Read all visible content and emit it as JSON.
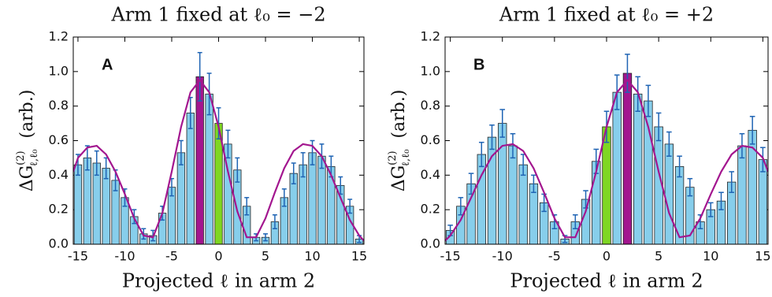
{
  "chart_data": [
    {
      "type": "bar",
      "title": "Arm 1 fixed at ℓ₀ = −2",
      "panel_label": "A",
      "xlabel": "Projected ℓ in arm 2",
      "ylabel": {
        "symbol": "ΔG",
        "sup": "(2)",
        "sub": "ℓ,ℓ₀",
        "unit": "(arb.)"
      },
      "categories": [
        -15,
        -14,
        -13,
        -12,
        -11,
        -10,
        -9,
        -8,
        -7,
        -6,
        -5,
        -4,
        -3,
        -2,
        -1,
        0,
        1,
        2,
        3,
        4,
        5,
        6,
        7,
        8,
        9,
        10,
        11,
        12,
        13,
        14,
        15
      ],
      "values": [
        0.46,
        0.5,
        0.47,
        0.44,
        0.37,
        0.27,
        0.16,
        0.06,
        0.05,
        0.18,
        0.33,
        0.53,
        0.76,
        0.97,
        0.87,
        0.7,
        0.58,
        0.43,
        0.22,
        0.04,
        0.04,
        0.13,
        0.27,
        0.41,
        0.46,
        0.53,
        0.51,
        0.45,
        0.34,
        0.22,
        0.03
      ],
      "errors": [
        0.06,
        0.07,
        0.07,
        0.06,
        0.06,
        0.05,
        0.04,
        0.03,
        0.03,
        0.04,
        0.05,
        0.07,
        0.09,
        0.14,
        0.12,
        0.09,
        0.08,
        0.07,
        0.05,
        0.02,
        0.02,
        0.04,
        0.05,
        0.06,
        0.07,
        0.07,
        0.07,
        0.06,
        0.05,
        0.04,
        0.02
      ],
      "bar_colors": [
        "#87ceeb",
        "#87ceeb",
        "#87ceeb",
        "#87ceeb",
        "#87ceeb",
        "#87ceeb",
        "#87ceeb",
        "#87ceeb",
        "#87ceeb",
        "#87ceeb",
        "#87ceeb",
        "#87ceeb",
        "#87ceeb",
        "#a3168f",
        "#87ceeb",
        "#7fd623",
        "#87ceeb",
        "#87ceeb",
        "#87ceeb",
        "#87ceeb",
        "#87ceeb",
        "#87ceeb",
        "#87ceeb",
        "#87ceeb",
        "#87ceeb",
        "#87ceeb",
        "#87ceeb",
        "#87ceeb",
        "#87ceeb",
        "#87ceeb",
        "#87ceeb"
      ],
      "error_color": "#1f64b4",
      "fit": {
        "color": "#a3168f",
        "x": [
          -15.5,
          -15,
          -14,
          -13,
          -12,
          -11,
          -10,
          -9,
          -8,
          -7,
          -6,
          -5,
          -4,
          -3,
          -2,
          -1,
          0,
          1,
          2,
          3,
          4,
          5,
          6,
          7,
          8,
          9,
          10,
          11,
          12,
          13,
          14,
          15,
          15.5
        ],
        "values": [
          0.42,
          0.5,
          0.56,
          0.57,
          0.52,
          0.42,
          0.29,
          0.15,
          0.05,
          0.04,
          0.18,
          0.42,
          0.68,
          0.88,
          0.95,
          0.88,
          0.68,
          0.42,
          0.19,
          0.04,
          0.04,
          0.15,
          0.3,
          0.44,
          0.54,
          0.58,
          0.57,
          0.51,
          0.4,
          0.27,
          0.14,
          0.05,
          0.02
        ]
      },
      "xlim": [
        -15.5,
        15.5
      ],
      "xticks": [
        -15,
        -10,
        -5,
        0,
        5,
        10,
        15
      ],
      "ylim": [
        0,
        1.2
      ],
      "yticks": [
        {
          "value": 0,
          "label": "0.0"
        },
        {
          "value": 0.2,
          "label": "0.2"
        },
        {
          "value": 0.4,
          "label": "0.4"
        },
        {
          "value": 0.6,
          "label": "0.6"
        },
        {
          "value": 0.8,
          "label": "0.8"
        },
        {
          "value": 1,
          "label": "1.0"
        },
        {
          "value": 1.2,
          "label": "1.2"
        }
      ]
    },
    {
      "type": "bar",
      "title": "Arm 1 fixed at ℓ₀ = +2",
      "panel_label": "B",
      "xlabel": "Projected ℓ in arm 2",
      "ylabel": {
        "symbol": "ΔG",
        "sup": "(2)",
        "sub": "ℓ,ℓ₀",
        "unit": "(arb.)"
      },
      "categories": [
        -15,
        -14,
        -13,
        -12,
        -11,
        -10,
        -9,
        -8,
        -7,
        -6,
        -5,
        -4,
        -3,
        -2,
        -1,
        0,
        1,
        2,
        3,
        4,
        5,
        6,
        7,
        8,
        9,
        10,
        11,
        12,
        13,
        14,
        15
      ],
      "values": [
        0.08,
        0.22,
        0.35,
        0.52,
        0.62,
        0.7,
        0.57,
        0.46,
        0.35,
        0.24,
        0.13,
        0.03,
        0.13,
        0.26,
        0.48,
        0.68,
        0.88,
        0.99,
        0.87,
        0.83,
        0.68,
        0.58,
        0.45,
        0.33,
        0.13,
        0.2,
        0.25,
        0.36,
        0.57,
        0.66,
        0.49
      ],
      "errors": [
        0.03,
        0.05,
        0.06,
        0.07,
        0.07,
        0.08,
        0.07,
        0.06,
        0.05,
        0.05,
        0.04,
        0.02,
        0.04,
        0.05,
        0.07,
        0.09,
        0.1,
        0.11,
        0.1,
        0.09,
        0.08,
        0.07,
        0.06,
        0.05,
        0.04,
        0.04,
        0.05,
        0.06,
        0.07,
        0.08,
        0.07
      ],
      "bar_colors": [
        "#87ceeb",
        "#87ceeb",
        "#87ceeb",
        "#87ceeb",
        "#87ceeb",
        "#87ceeb",
        "#87ceeb",
        "#87ceeb",
        "#87ceeb",
        "#87ceeb",
        "#87ceeb",
        "#87ceeb",
        "#87ceeb",
        "#87ceeb",
        "#87ceeb",
        "#7fd623",
        "#87ceeb",
        "#a3168f",
        "#87ceeb",
        "#87ceeb",
        "#87ceeb",
        "#87ceeb",
        "#87ceeb",
        "#87ceeb",
        "#87ceeb",
        "#87ceeb",
        "#87ceeb",
        "#87ceeb",
        "#87ceeb",
        "#87ceeb",
        "#87ceeb"
      ],
      "error_color": "#1f64b4",
      "fit": {
        "color": "#a3168f",
        "x": [
          -15.5,
          -15,
          -14,
          -13,
          -12,
          -11,
          -10,
          -9,
          -8,
          -7,
          -6,
          -5,
          -4,
          -3,
          -2,
          -1,
          0,
          1,
          2,
          3,
          4,
          5,
          6,
          7,
          8,
          9,
          10,
          11,
          12,
          13,
          14,
          15,
          15.5
        ],
        "values": [
          0.02,
          0.05,
          0.14,
          0.27,
          0.4,
          0.51,
          0.57,
          0.58,
          0.54,
          0.44,
          0.3,
          0.15,
          0.04,
          0.04,
          0.19,
          0.42,
          0.68,
          0.88,
          0.95,
          0.88,
          0.68,
          0.42,
          0.18,
          0.04,
          0.05,
          0.15,
          0.29,
          0.42,
          0.52,
          0.57,
          0.56,
          0.5,
          0.42
        ]
      },
      "xlim": [
        -15.5,
        15.5
      ],
      "xticks": [
        -15,
        -10,
        -5,
        0,
        5,
        10,
        15
      ],
      "ylim": [
        0,
        1.2
      ],
      "yticks": [
        {
          "value": 0,
          "label": "0.0"
        },
        {
          "value": 0.2,
          "label": "0.2"
        },
        {
          "value": 0.4,
          "label": "0.4"
        },
        {
          "value": 0.6,
          "label": "0.6"
        },
        {
          "value": 0.8,
          "label": "0.8"
        },
        {
          "value": 1,
          "label": "1.0"
        },
        {
          "value": 1.2,
          "label": "1.2"
        }
      ]
    }
  ]
}
